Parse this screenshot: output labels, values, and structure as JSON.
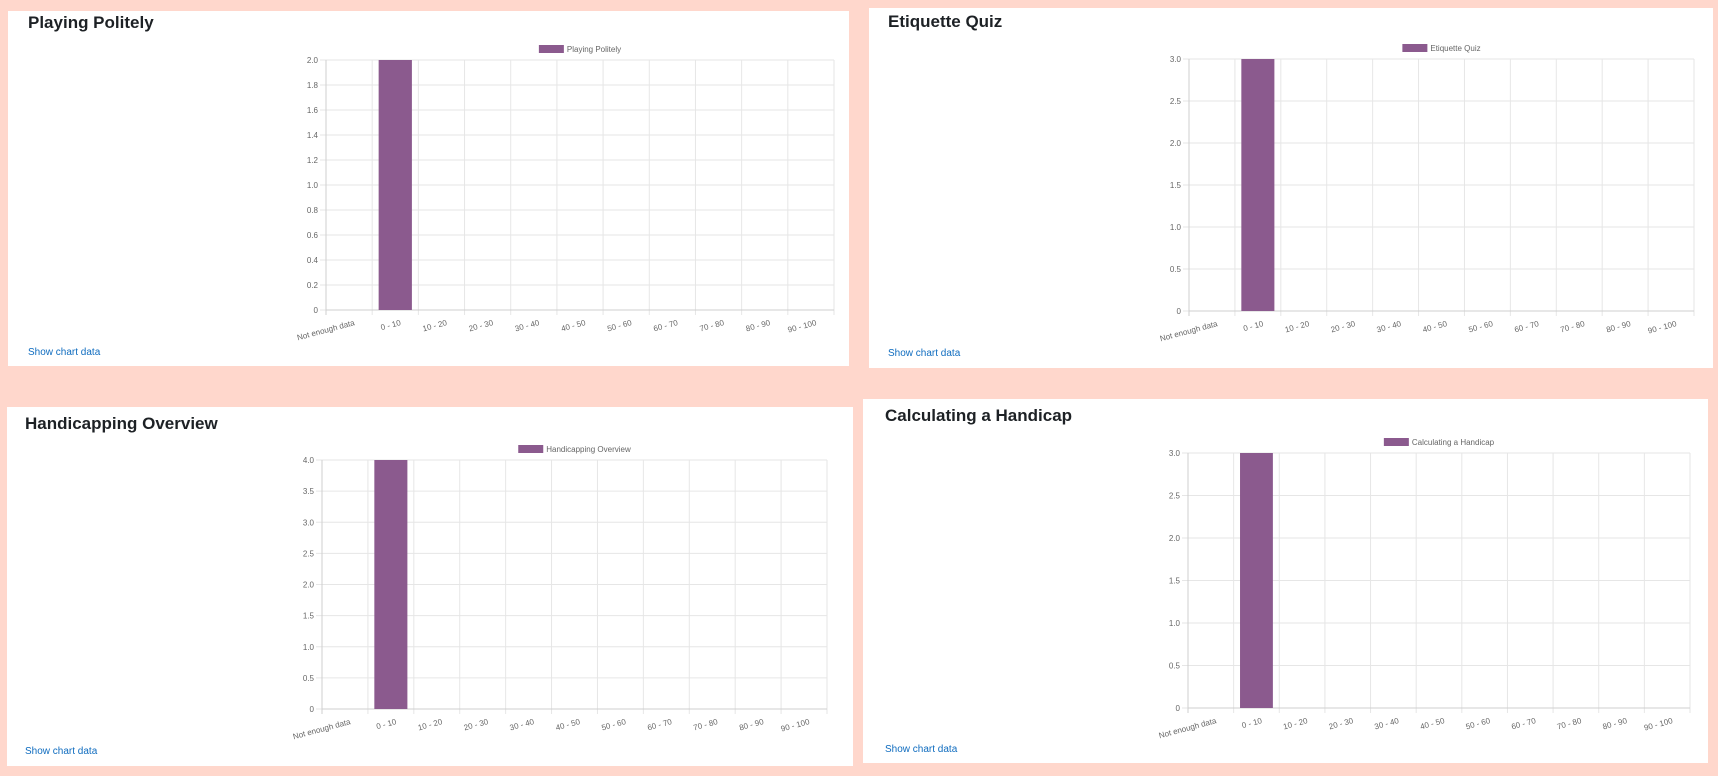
{
  "colors": {
    "bar": "#8b5a8e",
    "link": "#0f6cbf",
    "background": "#ffd7cc"
  },
  "show_chart_data_label": "Show chart data",
  "chart_data": [
    {
      "type": "bar",
      "title": "Playing Politely",
      "legend": "Playing Politely",
      "legend_position": "top",
      "categories": [
        "Not enough data",
        "0 - 10",
        "10 - 20",
        "20 - 30",
        "30 - 40",
        "40 - 50",
        "50 - 60",
        "60 - 70",
        "70 - 80",
        "80 - 90",
        "90 - 100"
      ],
      "values": [
        0,
        2,
        0,
        0,
        0,
        0,
        0,
        0,
        0,
        0,
        0
      ],
      "ylim": [
        0,
        2.0
      ],
      "yticks": [
        "0",
        "0.2",
        "0.4",
        "0.6",
        "0.8",
        "1.0",
        "1.2",
        "1.4",
        "1.6",
        "1.8",
        "2.0"
      ],
      "grid": true
    },
    {
      "type": "bar",
      "title": "Etiquette Quiz",
      "legend": "Etiquette Quiz",
      "legend_position": "top",
      "categories": [
        "Not enough data",
        "0 - 10",
        "10 - 20",
        "20 - 30",
        "30 - 40",
        "40 - 50",
        "50 - 60",
        "60 - 70",
        "70 - 80",
        "80 - 90",
        "90 - 100"
      ],
      "values": [
        0,
        3,
        0,
        0,
        0,
        0,
        0,
        0,
        0,
        0,
        0
      ],
      "ylim": [
        0,
        3.0
      ],
      "yticks": [
        "0",
        "0.5",
        "1.0",
        "1.5",
        "2.0",
        "2.5",
        "3.0"
      ],
      "grid": true
    },
    {
      "type": "bar",
      "title": "Handicapping Overview",
      "legend": "Handicapping Overview",
      "legend_position": "top",
      "categories": [
        "Not enough data",
        "0 - 10",
        "10 - 20",
        "20 - 30",
        "30 - 40",
        "40 - 50",
        "50 - 60",
        "60 - 70",
        "70 - 80",
        "80 - 90",
        "90 - 100"
      ],
      "values": [
        0,
        4,
        0,
        0,
        0,
        0,
        0,
        0,
        0,
        0,
        0
      ],
      "ylim": [
        0,
        4.0
      ],
      "yticks": [
        "0",
        "0.5",
        "1.0",
        "1.5",
        "2.0",
        "2.5",
        "3.0",
        "3.5",
        "4.0"
      ],
      "grid": true
    },
    {
      "type": "bar",
      "title": "Calculating a Handicap",
      "legend": "Calculating a Handicap",
      "legend_position": "top",
      "categories": [
        "Not enough data",
        "0 - 10",
        "10 - 20",
        "20 - 30",
        "30 - 40",
        "40 - 50",
        "50 - 60",
        "60 - 70",
        "70 - 80",
        "80 - 90",
        "90 - 100"
      ],
      "values": [
        0,
        3,
        0,
        0,
        0,
        0,
        0,
        0,
        0,
        0,
        0
      ],
      "ylim": [
        0,
        3.0
      ],
      "yticks": [
        "0",
        "0.5",
        "1.0",
        "1.5",
        "2.0",
        "2.5",
        "3.0"
      ],
      "grid": true
    }
  ]
}
